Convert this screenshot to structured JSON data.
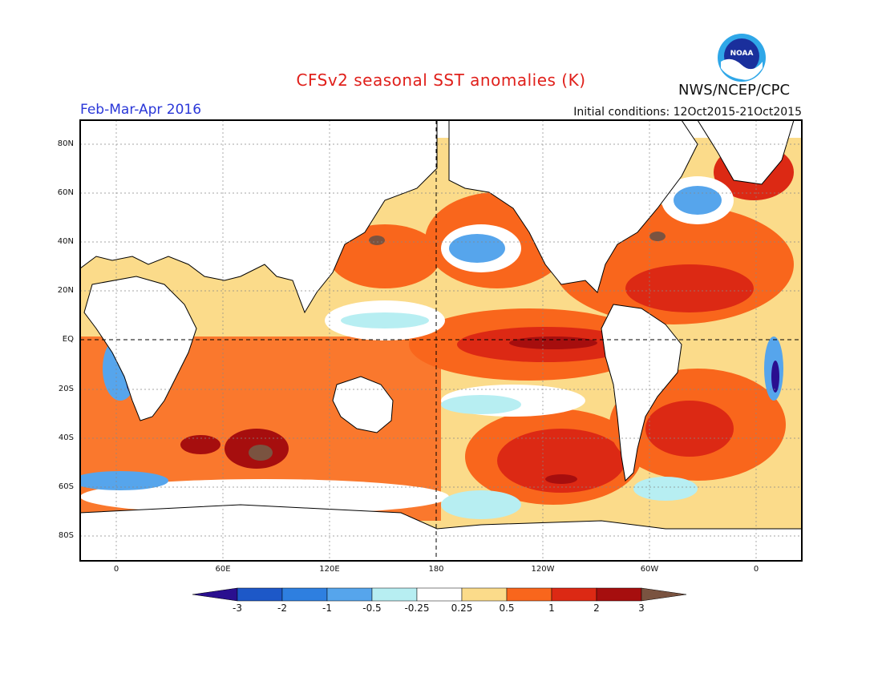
{
  "title": "CFSv2 seasonal SST anomalies (K)",
  "agency": "NWS/NCEP/CPC",
  "logo_text": "NOAA",
  "period": "Feb-Mar-Apr 2016",
  "initial_conditions": "Initial conditions: 12Oct2015-21Oct2015",
  "lat_labels": [
    {
      "label": "80N",
      "value": 80
    },
    {
      "label": "60N",
      "value": 60
    },
    {
      "label": "40N",
      "value": 40
    },
    {
      "label": "20N",
      "value": 20
    },
    {
      "label": "EQ",
      "value": 0
    },
    {
      "label": "20S",
      "value": -20
    },
    {
      "label": "40S",
      "value": -40
    },
    {
      "label": "60S",
      "value": -60
    },
    {
      "label": "80S",
      "value": -80
    }
  ],
  "lon_labels": [
    {
      "label": "0",
      "value": 0
    },
    {
      "label": "60E",
      "value": 60
    },
    {
      "label": "120E",
      "value": 120
    },
    {
      "label": "180",
      "value": 180
    },
    {
      "label": "120W",
      "value": 240
    },
    {
      "label": "60W",
      "value": 300
    },
    {
      "label": "0",
      "value": 360
    }
  ],
  "colorbar": {
    "labels": [
      "-3",
      "-2",
      "-1",
      "-0.5",
      "-0.25",
      "0.25",
      "0.5",
      "1",
      "2",
      "3"
    ],
    "colors": [
      "#2a0f8f",
      "#1d58c8",
      "#2e7fe0",
      "#56a5ec",
      "#b7eef2",
      "#ffffff",
      "#fbdb8a",
      "#f9661c",
      "#dc2914",
      "#a60e0e",
      "#7a5340"
    ]
  },
  "colors": {
    "title": "#e0201b",
    "period": "#2a37d8",
    "land": "#ffffff"
  }
}
